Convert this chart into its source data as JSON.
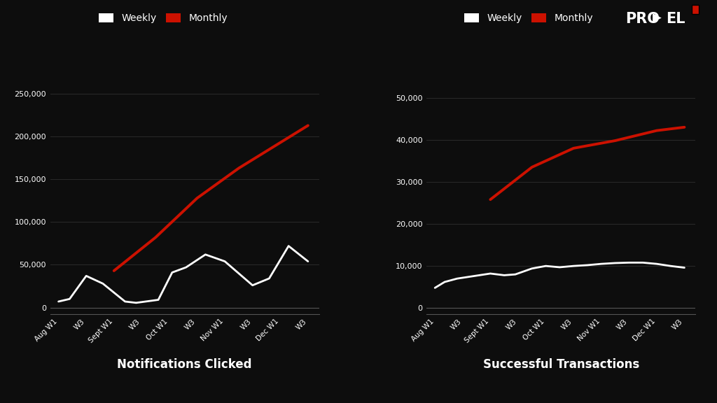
{
  "bg_color": "#0d0d0d",
  "text_color": "#ffffff",
  "grid_color": "#2a2a2a",
  "weekly_color": "#ffffff",
  "monthly_color": "#cc1100",
  "x_labels": [
    "Aug W1",
    "W3",
    "Sept W1",
    "W3",
    "Oct W1",
    "W3",
    "Nov W1",
    "W3",
    "Dec W1",
    "W3"
  ],
  "notif_weekly_x": [
    0,
    0.4,
    1.0,
    1.6,
    2.4,
    2.8,
    3.6,
    4.1,
    4.6,
    5.3,
    6.0,
    7.0,
    7.6,
    8.3,
    9.0
  ],
  "notif_weekly_y": [
    7000,
    10000,
    37000,
    28000,
    7000,
    5500,
    9000,
    41000,
    47000,
    62000,
    54000,
    26000,
    34000,
    72000,
    54000
  ],
  "notif_monthly_x": [
    2.0,
    3.5,
    5.0,
    6.5,
    8.0,
    9.0
  ],
  "notif_monthly_y": [
    43000,
    82000,
    128000,
    163000,
    193000,
    213000
  ],
  "trans_weekly_x": [
    0,
    0.35,
    0.8,
    1.3,
    2.0,
    2.5,
    2.9,
    3.5,
    4.0,
    4.5,
    5.0,
    5.5,
    6.0,
    6.5,
    7.0,
    7.5,
    8.0,
    8.5,
    9.0
  ],
  "trans_weekly_y": [
    4800,
    6200,
    7000,
    7500,
    8200,
    7800,
    8000,
    9400,
    10000,
    9700,
    10000,
    10200,
    10500,
    10700,
    10800,
    10800,
    10500,
    10000,
    9600
  ],
  "trans_monthly_x": [
    2.0,
    3.5,
    5.0,
    6.5,
    8.0,
    9.0
  ],
  "trans_monthly_y": [
    25800,
    33500,
    38000,
    39800,
    42200,
    43000
  ],
  "notif_yticks": [
    0,
    50000,
    100000,
    150000,
    200000,
    250000
  ],
  "trans_yticks": [
    0,
    10000,
    20000,
    30000,
    40000,
    50000
  ],
  "notif_ylim": [
    -8000,
    275000
  ],
  "trans_ylim": [
    -1500,
    56000
  ],
  "title1": "Notifications Clicked",
  "title2": "Successful Transactions",
  "legend_weekly": "Weekly",
  "legend_monthly": "Monthly",
  "propel_logo": "PRO▶EL"
}
